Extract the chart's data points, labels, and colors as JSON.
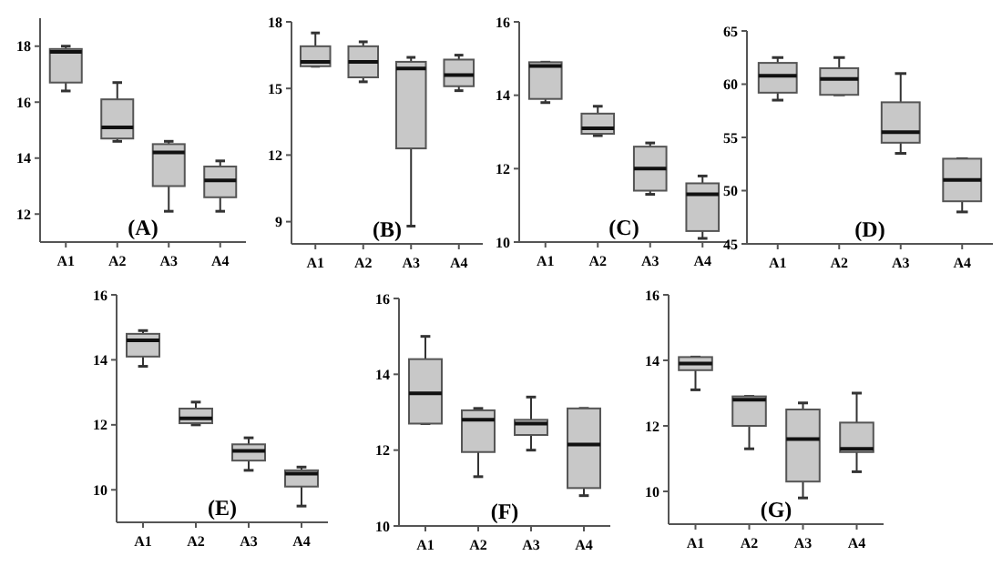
{
  "chart_data": [
    {
      "type": "box",
      "title": "(A)",
      "categories": [
        "A1",
        "A2",
        "A3",
        "A4"
      ],
      "color": "#c8c8c8",
      "ylim": [
        11,
        19
      ],
      "yticks": [
        12,
        14,
        16,
        18
      ],
      "boxes": [
        {
          "low": 16.4,
          "q1": 16.7,
          "median": 17.8,
          "q3": 17.9,
          "high": 18.0
        },
        {
          "low": 14.6,
          "q1": 14.7,
          "median": 15.1,
          "q3": 16.1,
          "high": 16.7
        },
        {
          "low": 12.1,
          "q1": 13.0,
          "median": 14.2,
          "q3": 14.5,
          "high": 14.6
        },
        {
          "low": 12.1,
          "q1": 12.6,
          "median": 13.2,
          "q3": 13.7,
          "high": 13.9
        }
      ]
    },
    {
      "type": "box",
      "title": "(B)",
      "categories": [
        "A1",
        "A2",
        "A3",
        "A4"
      ],
      "color": "#c8c8c8",
      "ylim": [
        8,
        18
      ],
      "yticks": [
        9,
        12,
        15,
        18
      ],
      "boxes": [
        {
          "low": 16.0,
          "q1": 16.0,
          "median": 16.2,
          "q3": 16.9,
          "high": 17.5
        },
        {
          "low": 15.3,
          "q1": 15.5,
          "median": 16.2,
          "q3": 16.9,
          "high": 17.1
        },
        {
          "low": 8.8,
          "q1": 12.3,
          "median": 15.9,
          "q3": 16.2,
          "high": 16.4
        },
        {
          "low": 14.9,
          "q1": 15.1,
          "median": 15.6,
          "q3": 16.3,
          "high": 16.5
        }
      ]
    },
    {
      "type": "box",
      "title": "(C)",
      "categories": [
        "A1",
        "A2",
        "A3",
        "A4"
      ],
      "color": "#c8c8c8",
      "ylim": [
        10,
        16
      ],
      "yticks": [
        10,
        12,
        14,
        16
      ],
      "boxes": [
        {
          "low": 13.8,
          "q1": 13.9,
          "median": 14.8,
          "q3": 14.9,
          "high": 14.9
        },
        {
          "low": 12.9,
          "q1": 12.95,
          "median": 13.1,
          "q3": 13.5,
          "high": 13.7
        },
        {
          "low": 11.3,
          "q1": 11.4,
          "median": 12.0,
          "q3": 12.6,
          "high": 12.7
        },
        {
          "low": 10.1,
          "q1": 10.3,
          "median": 11.3,
          "q3": 11.6,
          "high": 11.8
        }
      ]
    },
    {
      "type": "box",
      "title": "(D)",
      "categories": [
        "A1",
        "A2",
        "A3",
        "A4"
      ],
      "color": "#c8c8c8",
      "ylim": [
        45,
        65
      ],
      "yticks": [
        45,
        50,
        55,
        60,
        65
      ],
      "boxes": [
        {
          "low": 58.5,
          "q1": 59.2,
          "median": 60.8,
          "q3": 62.0,
          "high": 62.5
        },
        {
          "low": 59.0,
          "q1": 59.0,
          "median": 60.5,
          "q3": 61.5,
          "high": 62.5
        },
        {
          "low": 53.5,
          "q1": 54.5,
          "median": 55.5,
          "q3": 58.3,
          "high": 61.0
        },
        {
          "low": 48.0,
          "q1": 49.0,
          "median": 51.0,
          "q3": 53.0,
          "high": 53.0
        }
      ]
    },
    {
      "type": "box",
      "title": "(E)",
      "categories": [
        "A1",
        "A2",
        "A3",
        "A4"
      ],
      "color": "#c8c8c8",
      "ylim": [
        9,
        16
      ],
      "yticks": [
        10,
        12,
        14,
        16
      ],
      "boxes": [
        {
          "low": 13.8,
          "q1": 14.1,
          "median": 14.6,
          "q3": 14.8,
          "high": 14.9
        },
        {
          "low": 12.0,
          "q1": 12.05,
          "median": 12.2,
          "q3": 12.5,
          "high": 12.7
        },
        {
          "low": 10.6,
          "q1": 10.9,
          "median": 11.2,
          "q3": 11.4,
          "high": 11.6
        },
        {
          "low": 9.5,
          "q1": 10.1,
          "median": 10.5,
          "q3": 10.6,
          "high": 10.7
        }
      ]
    },
    {
      "type": "box",
      "title": "(F)",
      "categories": [
        "A1",
        "A2",
        "A3",
        "A4"
      ],
      "color": "#c8c8c8",
      "ylim": [
        10,
        16
      ],
      "yticks": [
        10,
        12,
        14,
        16
      ],
      "boxes": [
        {
          "low": 12.7,
          "q1": 12.7,
          "median": 13.5,
          "q3": 14.4,
          "high": 15.0
        },
        {
          "low": 11.3,
          "q1": 11.95,
          "median": 12.8,
          "q3": 13.05,
          "high": 13.1
        },
        {
          "low": 12.0,
          "q1": 12.4,
          "median": 12.7,
          "q3": 12.8,
          "high": 13.4
        },
        {
          "low": 10.8,
          "q1": 11.0,
          "median": 12.15,
          "q3": 13.1,
          "high": 13.1
        }
      ]
    },
    {
      "type": "box",
      "title": "(G)",
      "categories": [
        "A1",
        "A2",
        "A3",
        "A4"
      ],
      "color": "#c8c8c8",
      "ylim": [
        9,
        16
      ],
      "yticks": [
        10,
        12,
        14,
        16
      ],
      "boxes": [
        {
          "low": 13.1,
          "q1": 13.7,
          "median": 13.9,
          "q3": 14.1,
          "high": 14.1
        },
        {
          "low": 11.3,
          "q1": 12.0,
          "median": 12.8,
          "q3": 12.9,
          "high": 12.9
        },
        {
          "low": 9.8,
          "q1": 10.3,
          "median": 11.6,
          "q3": 12.5,
          "high": 12.7
        },
        {
          "low": 10.6,
          "q1": 11.2,
          "median": 11.3,
          "q3": 12.1,
          "high": 13.0
        }
      ]
    }
  ]
}
